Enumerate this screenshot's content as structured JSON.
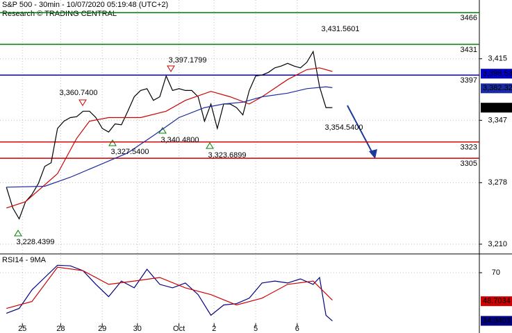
{
  "chart_data": {
    "type": "line",
    "title": "S&P 500 - 30min - 10/07/2020 05:19:48 (UTC+2)",
    "subtitle": "Research © TRADING CENTRAL",
    "xlim": [
      -1,
      74
    ],
    "xticks": [
      {
        "value": 2.5,
        "label": "25"
      },
      {
        "value": 8.5,
        "label": "28"
      },
      {
        "value": 15,
        "label": "29"
      },
      {
        "value": 20.5,
        "label": "30"
      },
      {
        "value": 27,
        "label": "Oct"
      },
      {
        "value": 32.5,
        "label": "2"
      },
      {
        "value": 39,
        "label": "5"
      },
      {
        "value": 45.5,
        "label": "6"
      }
    ],
    "ylim": [
      3200,
      3480
    ],
    "yticks": [
      {
        "value": 3210,
        "label": "3,210"
      },
      {
        "value": 3278,
        "label": "3,278"
      },
      {
        "value": 3347,
        "label": "3,347"
      },
      {
        "value": 3415,
        "label": "3,415"
      }
    ],
    "grid": true,
    "series": [
      {
        "color": "#000000",
        "values": [
          3273,
          3250,
          3238,
          3257,
          3265,
          3277,
          3296,
          3300,
          3338,
          3346,
          3350,
          3351,
          3357,
          3357,
          3350,
          3338,
          3334,
          3343,
          3342,
          3357,
          3373,
          3380,
          3382,
          3369,
          3373,
          3396,
          3380,
          3382,
          3380,
          3380,
          3373,
          3346,
          3365,
          3338,
          3365,
          3365,
          3361,
          3353,
          3380,
          3396,
          3397,
          3400,
          3405,
          3407,
          3410,
          3407,
          3405,
          3411,
          3423,
          3384,
          3361,
          3361
        ]
      },
      {
        "color": "#cc0000",
        "x": [
          0,
          3,
          8,
          11,
          13,
          16,
          21,
          25,
          28,
          32,
          35,
          38,
          40,
          44,
          47,
          49,
          51
        ],
        "values": [
          3250,
          3257,
          3288,
          3327,
          3346,
          3350,
          3350,
          3357,
          3369,
          3379,
          3373,
          3365,
          3373,
          3392,
          3403,
          3405,
          3401
        ]
      },
      {
        "color": "#1a2aa0",
        "x": [
          0,
          6,
          10,
          14,
          19,
          23,
          27,
          31,
          34,
          37,
          40,
          44,
          47,
          50,
          51
        ],
        "values": [
          3273,
          3274,
          3284,
          3296,
          3311,
          3330,
          3350,
          3361,
          3365,
          3367,
          3373,
          3377,
          3382,
          3384,
          3383
        ]
      }
    ],
    "levels": [
      {
        "value": 3466,
        "color": "#008000"
      },
      {
        "value": 3431,
        "color": "#008000"
      },
      {
        "value": 3397,
        "color": "#0000cc"
      },
      {
        "value": 3323,
        "color": "#cc0000"
      },
      {
        "value": 3305,
        "color": "#cc0000"
      }
    ],
    "price_tags": [
      {
        "value": 3398.53,
        "label": "3,398.53",
        "color": "#0000cc"
      },
      {
        "value": 3382.32,
        "label": "3,382.32",
        "color": "#1a2aa0"
      },
      {
        "value": 3360.95,
        "label": "3,360.95",
        "color": "#000000"
      }
    ],
    "annotations": [
      "3,431.5601",
      "3,397.1799",
      "3,360.7400",
      "3,327.5400",
      "3,340.4800",
      "3,323.6899",
      "3,228.4399",
      "3,354.5400"
    ],
    "indicator": {
      "title": "RSI14 - 9MA",
      "ylim": [
        26,
        83
      ],
      "yticks": [
        70
      ],
      "series": [
        {
          "color": "#000080",
          "x": [
            0,
            2,
            4,
            6,
            8,
            10,
            12,
            14,
            16,
            18,
            20,
            22,
            24,
            26,
            28,
            30,
            32,
            34,
            36,
            38,
            40,
            42,
            44,
            46,
            48,
            49,
            50,
            51
          ],
          "values": [
            39.7,
            43.3,
            57.2,
            66.4,
            75.6,
            75.1,
            71.5,
            61.3,
            52.1,
            63.8,
            58.7,
            72.6,
            61.3,
            58.7,
            62.3,
            53.6,
            38.2,
            45.9,
            46.9,
            51.0,
            62.3,
            63.8,
            62.3,
            65.4,
            61.3,
            66.4,
            38.2,
            34.0
          ]
        },
        {
          "color": "#cc0000",
          "x": [
            0,
            4,
            8,
            12,
            16,
            20,
            24,
            28,
            32,
            36,
            40,
            44,
            48,
            51
          ],
          "values": [
            43.3,
            48.5,
            74.1,
            71.5,
            61.3,
            63.8,
            66.4,
            58.7,
            53.6,
            45.9,
            51.0,
            61.3,
            63.8,
            49.5
          ]
        }
      ],
      "tags": [
        {
          "value": 48.7034,
          "label": "48.7034",
          "color": "#cc0000"
        },
        {
          "value": 34.0403,
          "label": "34.0403",
          "color": "#000080"
        }
      ]
    }
  }
}
